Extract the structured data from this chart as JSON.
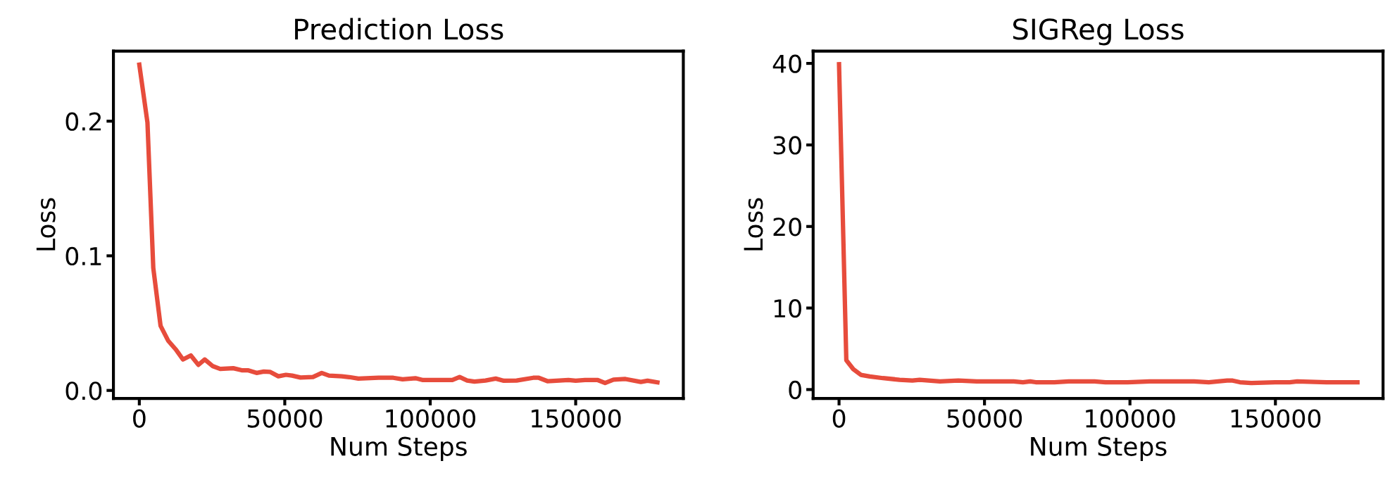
{
  "chart_data": [
    {
      "type": "line",
      "title": "Prediction Loss",
      "xlabel": "Num Steps",
      "ylabel": "Loss",
      "xlim": [
        -8900,
        187000
      ],
      "ylim": [
        -0.006,
        0.252
      ],
      "xticks": [
        0,
        50000,
        100000,
        150000
      ],
      "yticks": [
        {
          "value": 0,
          "label": "0.0"
        },
        0.1,
        0.2
      ],
      "grid": false,
      "legend": false,
      "series": [
        {
          "color": "#e74c3c",
          "x": [
            0,
            2800,
            4800,
            7300,
            9900,
            12700,
            15000,
            17700,
            20300,
            22500,
            25300,
            27800,
            32300,
            35200,
            37300,
            40300,
            42800,
            44900,
            47800,
            50400,
            52500,
            55400,
            59700,
            62700,
            65200,
            69600,
            72200,
            75300,
            82300,
            87300,
            90500,
            94900,
            97500,
            102500,
            107600,
            110100,
            112700,
            115200,
            119000,
            122500,
            125300,
            129700,
            135400,
            137300,
            140300,
            147500,
            150000,
            153200,
            157600,
            160100,
            163000,
            167100,
            172400,
            174700,
            178100
          ],
          "values": [
            0.242,
            0.199,
            0.091,
            0.048,
            0.037,
            0.03,
            0.023,
            0.026,
            0.019,
            0.023,
            0.018,
            0.016,
            0.0165,
            0.015,
            0.015,
            0.013,
            0.014,
            0.0138,
            0.0105,
            0.0116,
            0.011,
            0.0096,
            0.01,
            0.013,
            0.011,
            0.0105,
            0.0099,
            0.0088,
            0.0094,
            0.0094,
            0.0083,
            0.0091,
            0.0077,
            0.0077,
            0.0077,
            0.01,
            0.0074,
            0.0066,
            0.0074,
            0.0088,
            0.0072,
            0.0074,
            0.0094,
            0.0094,
            0.0069,
            0.0077,
            0.0072,
            0.0077,
            0.0077,
            0.0055,
            0.008,
            0.0085,
            0.0063,
            0.0072,
            0.006
          ]
        }
      ]
    },
    {
      "type": "line",
      "title": "SIGReg Loss",
      "xlabel": "Num Steps",
      "ylabel": "Loss",
      "xlim": [
        -8900,
        187000
      ],
      "ylim": [
        -1.1,
        41.5
      ],
      "xticks": [
        0,
        50000,
        100000,
        150000
      ],
      "yticks": [
        0,
        10,
        20,
        30,
        40
      ],
      "grid": false,
      "legend": false,
      "series": [
        {
          "color": "#e74c3c",
          "x": [
            0,
            2500,
            4900,
            7500,
            10600,
            15100,
            20800,
            25200,
            27700,
            34700,
            41000,
            47300,
            53700,
            60000,
            63200,
            65700,
            67600,
            74000,
            79000,
            87800,
            91600,
            99200,
            106800,
            111900,
            122000,
            127100,
            133400,
            135300,
            137800,
            141600,
            149900,
            154900,
            157500,
            167600,
            178200
          ],
          "values": [
            39.9,
            3.6,
            2.5,
            1.8,
            1.6,
            1.4,
            1.2,
            1.1,
            1.2,
            1.0,
            1.1,
            1.0,
            1.0,
            1.0,
            0.9,
            1.0,
            0.9,
            0.9,
            1.0,
            1.0,
            0.9,
            0.9,
            1.0,
            1.0,
            1.0,
            0.9,
            1.1,
            1.1,
            0.9,
            0.8,
            0.9,
            0.9,
            1.0,
            0.9,
            0.9
          ]
        }
      ]
    }
  ]
}
